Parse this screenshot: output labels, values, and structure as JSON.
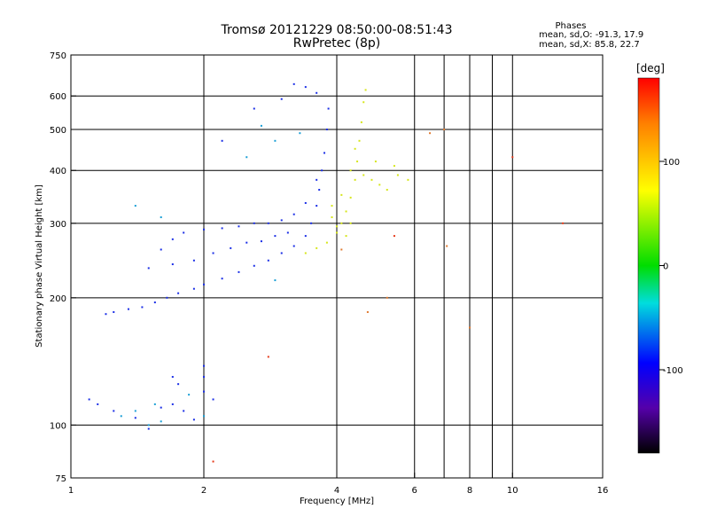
{
  "chart_data": {
    "type": "scatter",
    "title": "Tromsø 20121229 08:50:00-08:51:43",
    "subtitle": "RwPretec (8p)",
    "xlabel": "Frequency [MHz]",
    "ylabel": "Stationary phase Virtual Height [km]",
    "x_scale": "log",
    "y_scale": "log",
    "xlim": [
      1,
      16
    ],
    "ylim": [
      75,
      750
    ],
    "x_ticks": [
      1,
      2,
      4,
      6,
      8,
      10,
      16
    ],
    "x_tick_labels": [
      "1",
      "2",
      "4",
      "6",
      "8",
      "10",
      "16"
    ],
    "x_minor_ticks": [
      7,
      9
    ],
    "y_ticks": [
      75,
      100,
      200,
      300,
      400,
      500,
      600,
      750
    ],
    "y_tick_labels": [
      "75",
      "100",
      "200",
      "300",
      "400",
      "500",
      "600",
      "750"
    ],
    "grid": true,
    "stats_header": "Phases",
    "stats": [
      "mean, sd,O: -91.3, 17.9",
      "mean, sd,X:  85.8, 22.7"
    ],
    "colorbar": {
      "unit": "[deg]",
      "range": [
        -180,
        180
      ],
      "tick_values": [
        100,
        0,
        -100
      ],
      "tick_labels": [
        "100",
        "0",
        "-100"
      ]
    },
    "series": [
      {
        "points": [
          [
            1.2,
            183
          ],
          [
            1.25,
            185
          ],
          [
            1.35,
            188
          ],
          [
            1.45,
            190
          ],
          [
            1.55,
            195
          ],
          [
            1.65,
            200
          ],
          [
            1.75,
            205
          ],
          [
            1.9,
            210
          ],
          [
            2.0,
            215
          ],
          [
            2.2,
            222
          ],
          [
            2.4,
            230
          ],
          [
            2.6,
            238
          ],
          [
            2.8,
            245
          ],
          [
            3.0,
            255
          ],
          [
            3.2,
            265
          ],
          [
            3.4,
            280
          ],
          [
            3.5,
            300
          ],
          [
            3.6,
            330
          ],
          [
            3.65,
            360
          ],
          [
            3.7,
            400
          ],
          [
            3.75,
            440
          ],
          [
            3.8,
            500
          ],
          [
            3.83,
            560
          ],
          [
            1.6,
            260
          ],
          [
            1.7,
            275
          ],
          [
            1.8,
            285
          ],
          [
            2.0,
            290
          ],
          [
            2.2,
            292
          ],
          [
            2.4,
            295
          ],
          [
            2.6,
            300
          ],
          [
            2.8,
            300
          ],
          [
            3.0,
            305
          ],
          [
            3.2,
            315
          ],
          [
            3.4,
            335
          ],
          [
            3.6,
            380
          ],
          [
            1.5,
            235
          ],
          [
            1.7,
            240
          ],
          [
            1.9,
            245
          ],
          [
            2.1,
            255
          ],
          [
            2.3,
            262
          ],
          [
            2.5,
            270
          ],
          [
            2.7,
            272
          ],
          [
            2.9,
            280
          ],
          [
            3.1,
            285
          ],
          [
            2.2,
            470
          ],
          [
            2.6,
            560
          ],
          [
            3.0,
            590
          ],
          [
            3.2,
            640
          ],
          [
            3.4,
            630
          ],
          [
            3.6,
            610
          ],
          [
            1.1,
            115
          ],
          [
            1.15,
            112
          ],
          [
            1.25,
            108
          ],
          [
            1.4,
            104
          ],
          [
            1.5,
            98
          ],
          [
            1.6,
            110
          ],
          [
            1.7,
            112
          ],
          [
            1.8,
            108
          ],
          [
            1.9,
            103
          ],
          [
            2.0,
            120
          ],
          [
            2.0,
            130
          ],
          [
            1.7,
            130
          ],
          [
            1.75,
            125
          ],
          [
            2.0,
            138
          ],
          [
            2.1,
            115
          ]
        ]
      },
      {
        "points": [
          [
            3.4,
            255
          ],
          [
            3.6,
            262
          ],
          [
            3.8,
            270
          ],
          [
            4.0,
            285
          ],
          [
            4.1,
            300
          ],
          [
            4.2,
            320
          ],
          [
            4.3,
            345
          ],
          [
            4.4,
            380
          ],
          [
            4.45,
            420
          ],
          [
            4.5,
            470
          ],
          [
            4.55,
            520
          ],
          [
            4.6,
            580
          ],
          [
            4.65,
            620
          ],
          [
            3.9,
            330
          ],
          [
            4.1,
            350
          ],
          [
            4.3,
            400
          ],
          [
            4.4,
            450
          ],
          [
            4.6,
            390
          ],
          [
            4.8,
            380
          ],
          [
            5.0,
            370
          ],
          [
            5.2,
            360
          ],
          [
            5.5,
            390
          ],
          [
            5.8,
            380
          ],
          [
            4.9,
            420
          ],
          [
            5.4,
            410
          ],
          [
            4.0,
            295
          ],
          [
            3.9,
            310
          ],
          [
            4.2,
            280
          ],
          [
            4.3,
            300
          ]
        ]
      },
      {
        "points": [
          [
            1.5,
            100
          ],
          [
            1.6,
            102
          ],
          [
            1.3,
            105
          ],
          [
            1.4,
            108
          ],
          [
            1.55,
            112
          ],
          [
            1.85,
            118
          ],
          [
            2.0,
            105
          ],
          [
            2.9,
            220
          ],
          [
            2.5,
            430
          ],
          [
            2.7,
            510
          ],
          [
            2.9,
            470
          ],
          [
            3.3,
            490
          ],
          [
            1.4,
            330
          ],
          [
            1.6,
            310
          ]
        ]
      },
      {
        "points": [
          [
            6.5,
            490
          ],
          [
            7.0,
            500
          ],
          [
            4.7,
            185
          ],
          [
            5.2,
            200
          ],
          [
            8.0,
            170
          ],
          [
            7.1,
            265
          ],
          [
            4.1,
            260
          ]
        ]
      },
      {
        "points": [
          [
            2.1,
            82
          ],
          [
            2.8,
            145
          ],
          [
            10.0,
            430
          ],
          [
            13.0,
            300
          ],
          [
            5.4,
            280
          ]
        ]
      }
    ]
  }
}
